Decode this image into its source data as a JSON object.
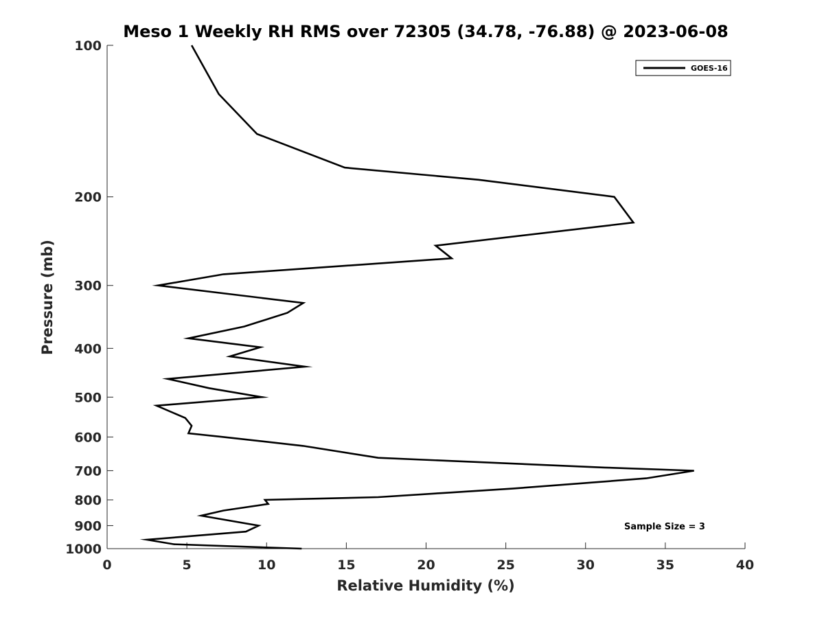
{
  "chart_data": {
    "type": "line",
    "title": "Meso 1 Weekly RH RMS over 72305 (34.78, -76.88) @ 2023-06-08",
    "xlabel": "Relative Humidity (%)",
    "ylabel": "Pressure (mb)",
    "xlim": [
      0,
      40
    ],
    "ylim": [
      100,
      1000
    ],
    "y_scale": "log",
    "y_reversed": true,
    "x_ticks": [
      0,
      5,
      10,
      15,
      20,
      25,
      30,
      35,
      40
    ],
    "x_tick_labels": [
      "0",
      "5",
      "10",
      "15",
      "20",
      "25",
      "30",
      "35",
      "40"
    ],
    "y_ticks": [
      100,
      200,
      300,
      400,
      500,
      600,
      700,
      800,
      900,
      1000
    ],
    "y_tick_labels": [
      "100",
      "200",
      "300",
      "400",
      "500",
      "600",
      "700",
      "800",
      "900",
      "1000"
    ],
    "grid": false,
    "legend_position": "top-right",
    "series": [
      {
        "name": "GOES-16",
        "color": "#000000",
        "x": [
          5.3,
          7.0,
          9.4,
          14.9,
          23.3,
          31.8,
          33.0,
          20.6,
          21.6,
          7.3,
          3.2,
          12.3,
          11.3,
          8.6,
          5.1,
          9.6,
          7.7,
          12.4,
          3.8,
          6.4,
          9.7,
          3.1,
          4.9,
          5.3,
          5.1,
          7.3,
          12.3,
          17.0,
          31.2,
          36.8,
          33.8,
          25.4,
          21.1,
          17.0,
          9.9,
          10.1,
          7.3,
          5.9,
          9.5,
          8.7,
          2.5,
          4.2,
          12.2
        ],
        "y": [
          100,
          125,
          150,
          175,
          185,
          200,
          225,
          250,
          265,
          285,
          300,
          325,
          340,
          362,
          382,
          398,
          415,
          435,
          460,
          480,
          500,
          520,
          550,
          570,
          590,
          600,
          625,
          660,
          690,
          700,
          725,
          760,
          775,
          790,
          800,
          815,
          840,
          860,
          900,
          925,
          960,
          980,
          1000
        ]
      }
    ],
    "annotations": [
      "Sample Size = 3"
    ]
  }
}
